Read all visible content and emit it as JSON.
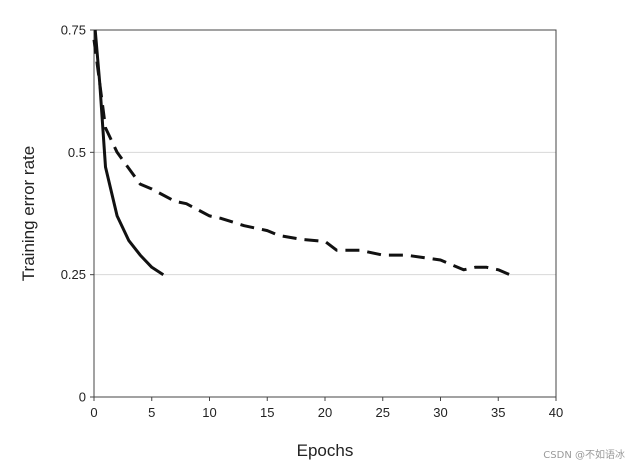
{
  "chart_data": {
    "type": "line",
    "xlabel": "Epochs",
    "ylabel": "Training error rate",
    "xlim": [
      0,
      40
    ],
    "ylim": [
      0,
      0.75
    ],
    "x_ticks": [
      0,
      5,
      10,
      15,
      20,
      25,
      30,
      35,
      40
    ],
    "y_ticks": [
      0,
      0.25,
      0.5,
      0.75
    ],
    "y_tick_labels": [
      "0",
      "0.25",
      "0.5",
      "0.75"
    ],
    "grid": "horizontal",
    "series": [
      {
        "style": "solid",
        "color": "#111111",
        "points": [
          [
            0.1,
            0.75
          ],
          [
            0.5,
            0.64
          ],
          [
            1,
            0.47
          ],
          [
            2,
            0.37
          ],
          [
            3,
            0.32
          ],
          [
            4,
            0.29
          ],
          [
            5,
            0.265
          ],
          [
            6,
            0.25
          ]
        ]
      },
      {
        "style": "dashed",
        "color": "#111111",
        "points": [
          [
            0,
            0.73
          ],
          [
            0.5,
            0.64
          ],
          [
            1,
            0.55
          ],
          [
            2,
            0.5
          ],
          [
            4,
            0.435
          ],
          [
            5,
            0.425
          ],
          [
            7,
            0.4
          ],
          [
            8,
            0.395
          ],
          [
            10,
            0.37
          ],
          [
            11,
            0.365
          ],
          [
            13,
            0.35
          ],
          [
            15,
            0.34
          ],
          [
            16,
            0.33
          ],
          [
            18,
            0.322
          ],
          [
            20,
            0.318
          ],
          [
            21,
            0.3
          ],
          [
            23,
            0.3
          ],
          [
            25,
            0.29
          ],
          [
            27,
            0.29
          ],
          [
            30,
            0.28
          ],
          [
            32,
            0.26
          ],
          [
            33,
            0.265
          ],
          [
            34,
            0.265
          ],
          [
            35,
            0.26
          ],
          [
            36,
            0.25
          ]
        ]
      }
    ]
  },
  "watermark": "CSDN @不如语冰"
}
